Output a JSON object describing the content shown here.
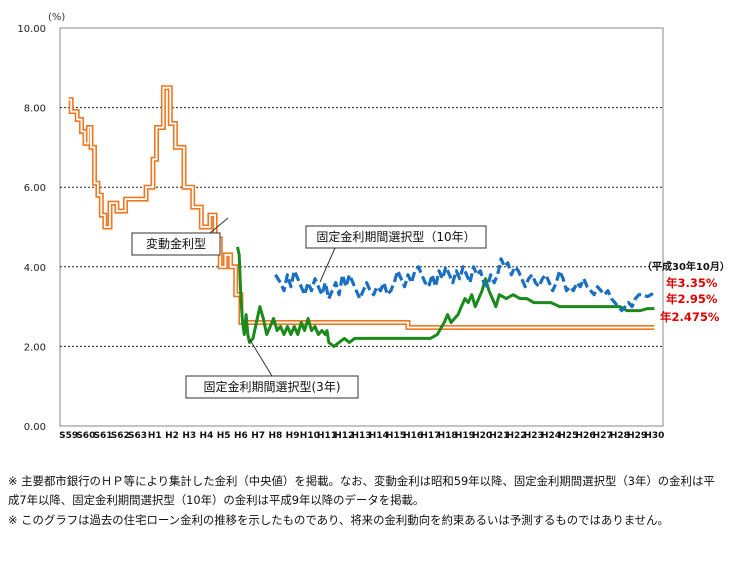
{
  "chart_data": {
    "type": "line",
    "ylabel": "(%)",
    "ylim": [
      0,
      10
    ],
    "yticks": [
      "0.00",
      "2.00",
      "4.00",
      "6.00",
      "8.00",
      "10.00"
    ],
    "grid": "horizontal dashed",
    "x_categories": [
      "S59",
      "S60",
      "S61",
      "S62",
      "S63",
      "H1",
      "H2",
      "H3",
      "H4",
      "H5",
      "H6",
      "H7",
      "H8",
      "H9",
      "H10",
      "H11",
      "H12",
      "H13",
      "H14",
      "H15",
      "H16",
      "H17",
      "H18",
      "H19",
      "H20",
      "H21",
      "H22",
      "H23",
      "H24",
      "H25",
      "H26",
      "H27",
      "H28",
      "H29",
      "H30"
    ],
    "series": [
      {
        "name": "変動金利型",
        "color": "#ee7722",
        "style": "double",
        "points": [
          [
            0,
            8.2
          ],
          [
            0.15,
            8.2
          ],
          [
            0.15,
            7.9
          ],
          [
            0.5,
            7.9
          ],
          [
            0.5,
            7.7
          ],
          [
            0.75,
            7.7
          ],
          [
            0.75,
            7.4
          ],
          [
            0.95,
            7.4
          ],
          [
            0.95,
            7.1
          ],
          [
            1.15,
            7.1
          ],
          [
            1.15,
            7.5
          ],
          [
            1.3,
            7.5
          ],
          [
            1.3,
            7.0
          ],
          [
            1.5,
            7.0
          ],
          [
            1.5,
            6.1
          ],
          [
            1.7,
            6.1
          ],
          [
            1.7,
            5.8
          ],
          [
            1.9,
            5.8
          ],
          [
            1.9,
            5.3
          ],
          [
            2.1,
            5.3
          ],
          [
            2.1,
            5.0
          ],
          [
            2.4,
            5.0
          ],
          [
            2.4,
            5.6
          ],
          [
            2.8,
            5.6
          ],
          [
            2.8,
            5.4
          ],
          [
            3.3,
            5.4
          ],
          [
            3.3,
            5.7
          ],
          [
            4.5,
            5.7
          ],
          [
            4.5,
            6.0
          ],
          [
            4.9,
            6.0
          ],
          [
            4.9,
            6.7
          ],
          [
            5.1,
            6.7
          ],
          [
            5.1,
            7.5
          ],
          [
            5.5,
            7.5
          ],
          [
            5.5,
            8.5
          ],
          [
            5.9,
            8.5
          ],
          [
            5.9,
            7.6
          ],
          [
            6.2,
            7.6
          ],
          [
            6.2,
            7.0
          ],
          [
            6.7,
            7.0
          ],
          [
            6.7,
            6.0
          ],
          [
            7.2,
            6.0
          ],
          [
            7.2,
            5.5
          ],
          [
            7.7,
            5.5
          ],
          [
            7.7,
            5.0
          ],
          [
            8.2,
            5.0
          ],
          [
            8.2,
            5.3
          ],
          [
            8.5,
            5.3
          ],
          [
            8.5,
            4.7
          ],
          [
            8.8,
            4.7
          ],
          [
            8.8,
            4.0
          ],
          [
            9.1,
            4.0
          ],
          [
            9.1,
            4.3
          ],
          [
            9.4,
            4.3
          ],
          [
            9.4,
            4.0
          ],
          [
            9.7,
            4.0
          ],
          [
            9.7,
            3.3
          ],
          [
            10.0,
            3.3
          ],
          [
            10.0,
            2.6
          ],
          [
            19.7,
            2.6
          ],
          [
            19.7,
            2.475
          ],
          [
            34.0,
            2.475
          ]
        ]
      },
      {
        "name": "固定金利期間選択型（3年）",
        "color": "#1b8a1b",
        "style": "solid",
        "points": [
          [
            9.8,
            4.5
          ],
          [
            9.9,
            4.3
          ],
          [
            10.0,
            3.2
          ],
          [
            10.1,
            2.6
          ],
          [
            10.2,
            2.3
          ],
          [
            10.3,
            2.8
          ],
          [
            10.4,
            2.3
          ],
          [
            10.5,
            2.1
          ],
          [
            10.7,
            2.2
          ],
          [
            10.9,
            2.6
          ],
          [
            11.1,
            3.0
          ],
          [
            11.3,
            2.7
          ],
          [
            11.5,
            2.3
          ],
          [
            11.7,
            2.5
          ],
          [
            11.9,
            2.7
          ],
          [
            12.1,
            2.4
          ],
          [
            12.3,
            2.5
          ],
          [
            12.5,
            2.3
          ],
          [
            12.7,
            2.5
          ],
          [
            12.9,
            2.3
          ],
          [
            13.1,
            2.5
          ],
          [
            13.3,
            2.3
          ],
          [
            13.5,
            2.6
          ],
          [
            13.7,
            2.4
          ],
          [
            13.9,
            2.7
          ],
          [
            14.1,
            2.4
          ],
          [
            14.3,
            2.5
          ],
          [
            14.5,
            2.3
          ],
          [
            14.7,
            2.4
          ],
          [
            14.9,
            2.3
          ],
          [
            15.0,
            2.4
          ],
          [
            15.1,
            2.1
          ],
          [
            15.4,
            2.0
          ],
          [
            15.7,
            2.1
          ],
          [
            16.0,
            2.2
          ],
          [
            16.3,
            2.1
          ],
          [
            16.6,
            2.2
          ],
          [
            17.0,
            2.2
          ],
          [
            21.0,
            2.2
          ],
          [
            21.4,
            2.3
          ],
          [
            21.8,
            2.6
          ],
          [
            22.0,
            2.8
          ],
          [
            22.2,
            2.6
          ],
          [
            22.4,
            2.7
          ],
          [
            22.6,
            2.8
          ],
          [
            22.8,
            3.0
          ],
          [
            23.0,
            3.2
          ],
          [
            23.2,
            3.1
          ],
          [
            23.4,
            3.3
          ],
          [
            23.6,
            3.0
          ],
          [
            23.8,
            3.2
          ],
          [
            24.0,
            3.4
          ],
          [
            24.2,
            3.7
          ],
          [
            24.4,
            3.4
          ],
          [
            24.6,
            3.2
          ],
          [
            24.8,
            3.0
          ],
          [
            25.0,
            3.3
          ],
          [
            25.4,
            3.2
          ],
          [
            25.8,
            3.3
          ],
          [
            26.2,
            3.2
          ],
          [
            26.6,
            3.2
          ],
          [
            27.0,
            3.1
          ],
          [
            28.0,
            3.1
          ],
          [
            28.5,
            3.0
          ],
          [
            30.0,
            3.0
          ],
          [
            32.0,
            3.0
          ],
          [
            32.4,
            2.9
          ],
          [
            32.8,
            2.9
          ],
          [
            33.2,
            2.9
          ],
          [
            33.6,
            2.95
          ],
          [
            34.0,
            2.95
          ]
        ]
      },
      {
        "name": "固定金利期間選択型（10年）",
        "color": "#1a6fc4",
        "style": "dashed",
        "points": [
          [
            12.0,
            3.8
          ],
          [
            12.3,
            3.6
          ],
          [
            12.5,
            3.4
          ],
          [
            12.7,
            3.8
          ],
          [
            12.9,
            3.5
          ],
          [
            13.1,
            3.9
          ],
          [
            13.3,
            3.7
          ],
          [
            13.5,
            3.5
          ],
          [
            13.7,
            3.3
          ],
          [
            13.9,
            3.6
          ],
          [
            14.1,
            3.4
          ],
          [
            14.3,
            3.7
          ],
          [
            14.5,
            3.5
          ],
          [
            14.7,
            3.3
          ],
          [
            14.9,
            3.6
          ],
          [
            15.1,
            3.2
          ],
          [
            15.3,
            3.4
          ],
          [
            15.5,
            3.6
          ],
          [
            15.7,
            3.3
          ],
          [
            15.9,
            3.8
          ],
          [
            16.1,
            3.5
          ],
          [
            16.3,
            3.8
          ],
          [
            16.5,
            3.6
          ],
          [
            16.7,
            3.4
          ],
          [
            16.9,
            3.2
          ],
          [
            17.1,
            3.4
          ],
          [
            17.3,
            3.6
          ],
          [
            17.5,
            3.4
          ],
          [
            17.7,
            3.3
          ],
          [
            17.9,
            3.5
          ],
          [
            18.1,
            3.4
          ],
          [
            18.3,
            3.6
          ],
          [
            18.5,
            3.3
          ],
          [
            18.7,
            3.4
          ],
          [
            18.9,
            3.6
          ],
          [
            19.1,
            3.9
          ],
          [
            19.3,
            3.7
          ],
          [
            19.5,
            3.5
          ],
          [
            19.7,
            3.8
          ],
          [
            19.9,
            3.6
          ],
          [
            20.1,
            3.9
          ],
          [
            20.3,
            4.0
          ],
          [
            20.5,
            3.8
          ],
          [
            20.7,
            3.6
          ],
          [
            20.9,
            3.5
          ],
          [
            21.1,
            3.8
          ],
          [
            21.3,
            3.5
          ],
          [
            21.5,
            3.9
          ],
          [
            21.7,
            3.7
          ],
          [
            21.9,
            4.0
          ],
          [
            22.1,
            3.8
          ],
          [
            22.3,
            3.6
          ],
          [
            22.5,
            3.9
          ],
          [
            22.7,
            3.7
          ],
          [
            22.9,
            4.0
          ],
          [
            23.1,
            3.8
          ],
          [
            23.3,
            3.6
          ],
          [
            23.5,
            4.0
          ],
          [
            23.7,
            3.8
          ],
          [
            23.9,
            3.9
          ],
          [
            24.1,
            3.6
          ],
          [
            24.3,
            3.5
          ],
          [
            24.5,
            3.8
          ],
          [
            24.7,
            3.6
          ],
          [
            24.9,
            3.8
          ],
          [
            25.1,
            4.2
          ],
          [
            25.3,
            4.0
          ],
          [
            25.5,
            4.1
          ],
          [
            25.7,
            3.8
          ],
          [
            25.9,
            4.0
          ],
          [
            26.1,
            3.9
          ],
          [
            26.3,
            3.7
          ],
          [
            26.5,
            3.5
          ],
          [
            26.7,
            3.7
          ],
          [
            26.9,
            3.8
          ],
          [
            27.1,
            3.6
          ],
          [
            27.3,
            3.5
          ],
          [
            27.5,
            3.7
          ],
          [
            27.7,
            3.8
          ],
          [
            27.9,
            3.6
          ],
          [
            28.1,
            3.4
          ],
          [
            28.3,
            3.6
          ],
          [
            28.5,
            3.9
          ],
          [
            28.7,
            3.7
          ],
          [
            28.9,
            3.4
          ],
          [
            29.1,
            3.5
          ],
          [
            29.3,
            3.4
          ],
          [
            29.5,
            3.6
          ],
          [
            29.7,
            3.5
          ],
          [
            29.9,
            3.7
          ],
          [
            30.1,
            3.5
          ],
          [
            30.3,
            3.4
          ],
          [
            30.5,
            3.3
          ],
          [
            30.7,
            3.5
          ],
          [
            30.9,
            3.4
          ],
          [
            31.1,
            3.3
          ],
          [
            31.3,
            3.4
          ],
          [
            31.5,
            3.2
          ],
          [
            31.7,
            3.1
          ],
          [
            31.9,
            3.0
          ],
          [
            32.1,
            2.9
          ],
          [
            32.3,
            3.0
          ],
          [
            32.5,
            3.1
          ],
          [
            32.7,
            3.0
          ],
          [
            32.9,
            3.2
          ],
          [
            33.1,
            3.3
          ],
          [
            33.3,
            3.3
          ],
          [
            33.6,
            3.25
          ],
          [
            34.0,
            3.35
          ]
        ]
      }
    ],
    "labels": [
      {
        "text": "変動金利型"
      },
      {
        "text": "固定金利期間選択型（10年）"
      },
      {
        "text": "固定金利期間選択型(3年)"
      }
    ],
    "annotation_title": "（平成30年10月）",
    "annotations": [
      {
        "text": "年3.35%",
        "color": "#e00000"
      },
      {
        "text": "年2.95%",
        "color": "#e00000"
      },
      {
        "text": "年2.475%",
        "color": "#e00000"
      }
    ]
  },
  "notes": {
    "note1": "※ 主要都市銀行のＨＰ等により集計した金利（中央値）を掲載。なお、変動金利は昭和59年以降、固定金利期間選択型（3年）の金利は平成7年以降、固定金利期間選択型（10年）の金利は平成9年以降のデータを掲載。",
    "note2": "※ このグラフは過去の住宅ローン金利の推移を示したものであり、将来の金利動向を約束あるいは予測するものではありません。"
  }
}
